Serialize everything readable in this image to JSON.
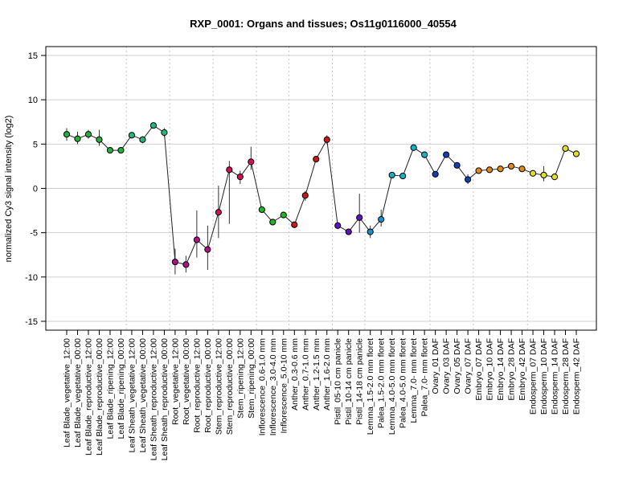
{
  "chart_data": {
    "type": "line",
    "title": "RXP_0001: Organs and tissues; Os11g0116000_40554",
    "ylabel": "normalized Cy3 signal intensity (log2)",
    "xlabel": "",
    "ylim": [
      -16,
      16
    ],
    "yticks": [
      -15,
      -10,
      -5,
      0,
      5,
      10,
      15
    ],
    "grid": {
      "horizontal": true,
      "vertical_group_separators": true
    },
    "categories": [
      "Leaf Blade_vegetative_12:00",
      "Leaf Blade_vegetative_00:00",
      "Leaf Blade_reproductive_12:00",
      "Leaf Blade_reproductive_00:00",
      "Leaf Blade_ripening_12:00",
      "Leaf Blade_ripening_00:00",
      "Leaf Sheath_vegetative_12:00",
      "Leaf Sheath_vegetative_00:00",
      "Leaf Sheath_reproductive_12:00",
      "Leaf Sheath_reproductive_00:00",
      "Root_vegetative_12:00",
      "Root_vegetative_00:00",
      "Root_reproductive_12:00",
      "Root_reproductive_00:00",
      "Stem_reproductive_12:00",
      "Stem_reproductive_00:00",
      "Stem_ripening_12:00",
      "Stem_ripening_00:00",
      "Inflorescence_0.6-1.0 mm",
      "Inflorescence_3.0-4.0 mm",
      "Inflorescence_5.0-10 mm",
      "Anther_0.3-0.6 mm",
      "Anther_0.7-1.0 mm",
      "Anther_1.2-1.5 mm",
      "Anther_1.6-2.0 mm",
      "Pistil_05-10 cm panicle",
      "Pistil_10-14 cm panicle",
      "Pistil_14-18 cm panicle",
      "Lemma_1.5-2.0 mm floret",
      "Palea_1.5-2.0 mm floret",
      "Lemma_4.0-5.0 mm floret",
      "Palea_4.0-5.0 mm floret",
      "Lemma_7.0- mm floret",
      "Palea_7.0- mm floret",
      "Ovary_01 DAF",
      "Ovary_03 DAF",
      "Ovary_05 DAF",
      "Ovary_07 DAF",
      "Embryo_07 DAF",
      "Embryo_10 DAF",
      "Embryo_14 DAF",
      "Embryo_28 DAF",
      "Embryo_42 DAF",
      "Endosperm_07 DAF",
      "Endosperm_10 DAF",
      "Endosperm_14 DAF",
      "Endosperm_28 DAF",
      "Endosperm_42 DAF"
    ],
    "series": [
      {
        "values": [
          6.1,
          5.6,
          6.1,
          5.5,
          4.3,
          4.3,
          6.0,
          5.5,
          7.1,
          6.3,
          -8.3,
          -8.6,
          -5.8,
          -6.9,
          -2.7,
          2.1,
          1.3,
          3.0,
          -2.4,
          -3.8,
          -3.0,
          -4.1,
          -0.8,
          3.3,
          5.5,
          -4.2,
          -4.9,
          -3.3,
          -4.9,
          -3.5,
          1.5,
          1.4,
          4.6,
          3.8,
          1.6,
          3.8,
          2.6,
          1.0,
          2.0,
          2.1,
          2.2,
          2.5,
          2.2,
          1.7,
          1.5,
          1.3,
          4.5,
          3.9
        ],
        "err_low": [
          5.4,
          5.0,
          5.6,
          4.8,
          4.3,
          4.3,
          6.0,
          5.1,
          7.1,
          5.8,
          -9.7,
          -9.5,
          -7.8,
          -9.2,
          -5.6,
          -4.0,
          0.5,
          2.1,
          -2.4,
          -3.8,
          -3.0,
          -4.1,
          -1.4,
          3.3,
          5.0,
          -4.6,
          -4.9,
          -5.0,
          -5.6,
          -4.3,
          1.5,
          1.4,
          4.3,
          3.4,
          1.6,
          3.8,
          2.6,
          0.5,
          2.0,
          2.1,
          2.2,
          2.5,
          2.2,
          1.7,
          0.8,
          1.0,
          4.5,
          3.9
        ],
        "err_high": [
          6.8,
          6.4,
          6.6,
          6.6,
          4.3,
          4.3,
          6.0,
          5.9,
          7.1,
          6.8,
          -6.8,
          -7.6,
          -2.5,
          -4.2,
          0.3,
          3.1,
          2.0,
          4.7,
          -2.4,
          -3.8,
          -3.0,
          -4.1,
          -0.3,
          3.3,
          6.0,
          -3.8,
          -4.9,
          -0.6,
          -4.2,
          -2.4,
          1.5,
          1.4,
          4.8,
          4.1,
          1.6,
          3.8,
          2.6,
          1.6,
          2.0,
          2.1,
          2.2,
          2.5,
          2.2,
          1.7,
          2.5,
          1.7,
          4.5,
          3.9
        ],
        "colors": [
          "#1fb33c",
          "#1fb33c",
          "#1fb33c",
          "#1fb33c",
          "#1fb33c",
          "#1fb33c",
          "#22b87a",
          "#22b87a",
          "#22b87a",
          "#22b87a",
          "#b0108a",
          "#b0108a",
          "#b0108a",
          "#b0108a",
          "#d0105a",
          "#d0105a",
          "#d0105a",
          "#d0105a",
          "#20b820",
          "#20b820",
          "#20b820",
          "#c81818",
          "#c81818",
          "#c81818",
          "#c81818",
          "#6010c0",
          "#6010c0",
          "#6010c0",
          "#1890d0",
          "#1890d0",
          "#14b0c8",
          "#14b0c8",
          "#14b0c8",
          "#14b0c8",
          "#1040b8",
          "#1040b8",
          "#1040b8",
          "#1040b8",
          "#e08a10",
          "#e08a10",
          "#e08a10",
          "#e08a10",
          "#e08a10",
          "#e0e020",
          "#e0e020",
          "#e0e020",
          "#e0e020",
          "#e0e020"
        ]
      }
    ],
    "group_separators_after": [
      5,
      9,
      13,
      17,
      20,
      24,
      27,
      33,
      37,
      42
    ]
  }
}
